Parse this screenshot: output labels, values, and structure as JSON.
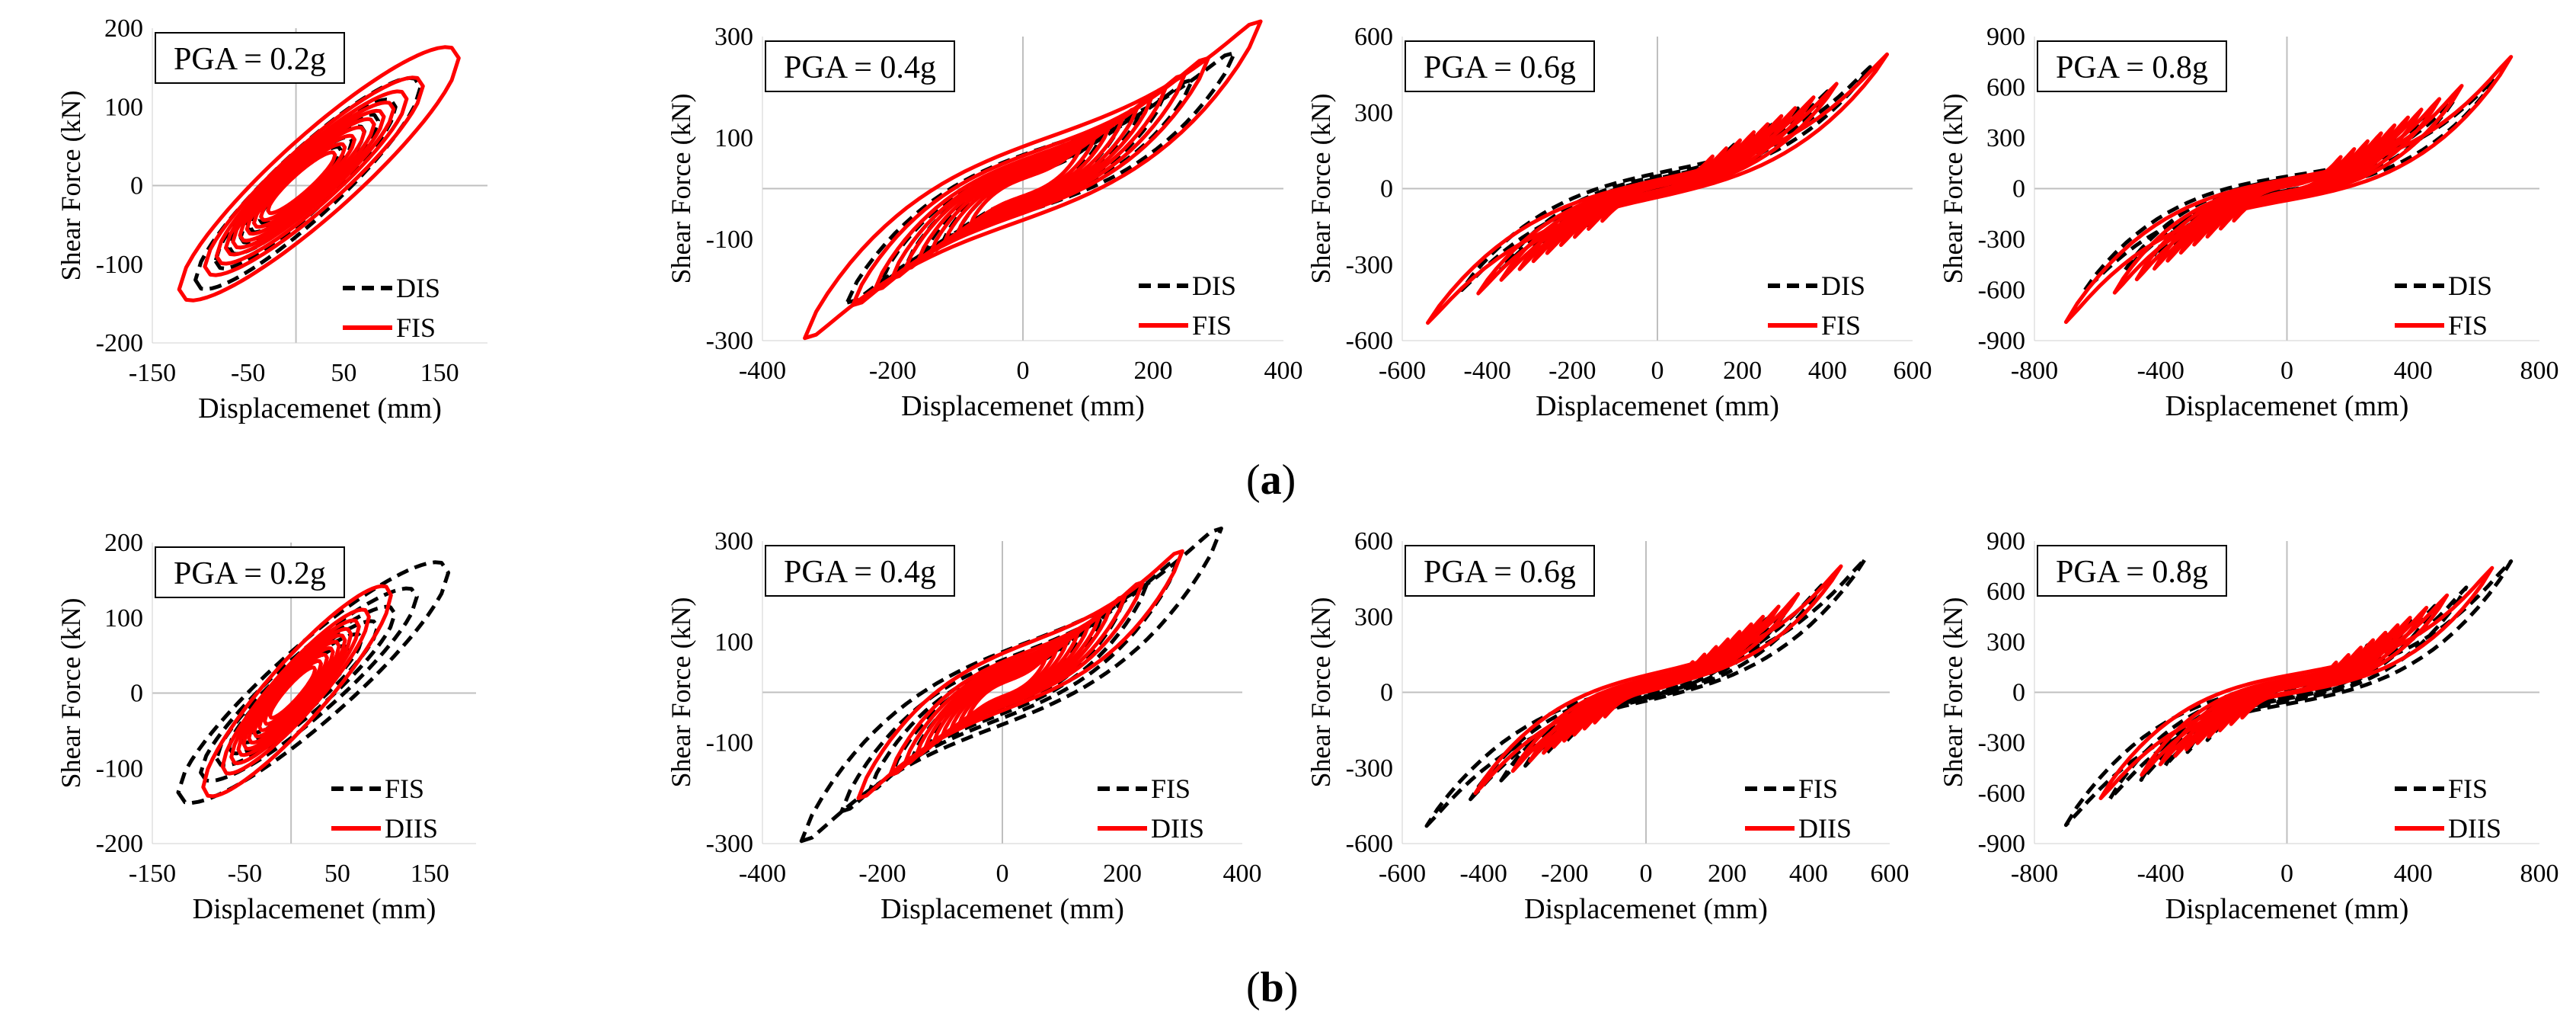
{
  "figure": {
    "row_a_label": "a",
    "row_b_label": "b"
  },
  "chart_data": [
    {
      "type": "line",
      "panel": "a1",
      "title": "PGA = 0.2g",
      "xlabel": "Displacemenet (mm)",
      "ylabel": "Shear Force (kN)",
      "xlim": [
        -150,
        200
      ],
      "ylim": [
        -200,
        200
      ],
      "xticks": [
        -150,
        -50,
        50,
        150
      ],
      "yticks": [
        -200,
        -100,
        0,
        100,
        200
      ],
      "legend": "bottom-right",
      "series": [
        {
          "name": "DIS",
          "style": "dashed",
          "color": "#000000",
          "max_disp": 130,
          "max_force": 125,
          "min_disp": -105,
          "min_force": -120
        },
        {
          "name": "FIS",
          "style": "solid",
          "color": "#ff0000",
          "max_disp": 170,
          "max_force": 162,
          "min_disp": -122,
          "min_force": -132
        }
      ]
    },
    {
      "type": "line",
      "panel": "a2",
      "title": "PGA = 0.4g",
      "xlabel": "Displacemenet (mm)",
      "ylabel": "Shear Force (kN)",
      "xlim": [
        -400,
        400
      ],
      "ylim": [
        -300,
        300
      ],
      "xticks": [
        -400,
        -200,
        0,
        200,
        400
      ],
      "yticks": [
        -300,
        -100,
        100,
        300
      ],
      "legend": "bottom-right",
      "series": [
        {
          "name": "DIS",
          "style": "dashed",
          "color": "#000000",
          "max_disp": 325,
          "max_force": 268,
          "min_disp": -270,
          "min_force": -225
        },
        {
          "name": "FIS",
          "style": "solid",
          "color": "#ff0000",
          "max_disp": 365,
          "max_force": 330,
          "min_disp": -335,
          "min_force": -295
        }
      ]
    },
    {
      "type": "line",
      "panel": "a3",
      "title": "PGA = 0.6g",
      "xlabel": "Displacemenet (mm)",
      "ylabel": "Shear Force (kN)",
      "xlim": [
        -600,
        600
      ],
      "ylim": [
        -600,
        600
      ],
      "xticks": [
        -600,
        -400,
        -200,
        0,
        200,
        400,
        600
      ],
      "yticks": [
        -600,
        -300,
        0,
        300,
        600
      ],
      "legend": "bottom-right",
      "series": [
        {
          "name": "DIS",
          "style": "dashed",
          "color": "#000000",
          "max_disp": 500,
          "max_force": 480,
          "min_disp": -460,
          "min_force": -400
        },
        {
          "name": "FIS",
          "style": "solid",
          "color": "#ff0000",
          "max_disp": 540,
          "max_force": 530,
          "min_disp": -540,
          "min_force": -530
        }
      ]
    },
    {
      "type": "line",
      "panel": "a4",
      "title": "PGA = 0.8g",
      "xlabel": "Displacemenet (mm)",
      "ylabel": "Shear Force (kN)",
      "xlim": [
        -800,
        800
      ],
      "ylim": [
        -900,
        900
      ],
      "xticks": [
        -800,
        -400,
        0,
        400,
        800
      ],
      "yticks": [
        -900,
        -600,
        -300,
        0,
        300,
        600,
        900
      ],
      "legend": "bottom-right",
      "series": [
        {
          "name": "DIS",
          "style": "dashed",
          "color": "#000000",
          "max_disp": 660,
          "max_force": 650,
          "min_disp": -640,
          "min_force": -600
        },
        {
          "name": "FIS",
          "style": "solid",
          "color": "#ff0000",
          "max_disp": 710,
          "max_force": 780,
          "min_disp": -700,
          "min_force": -790
        }
      ]
    },
    {
      "type": "line",
      "panel": "b1",
      "title": "PGA = 0.2g",
      "xlabel": "Displacemenet (mm)",
      "ylabel": "Shear Force (kN)",
      "xlim": [
        -150,
        200
      ],
      "ylim": [
        -200,
        200
      ],
      "xticks": [
        -150,
        -50,
        50,
        150
      ],
      "yticks": [
        -200,
        -100,
        0,
        100,
        200
      ],
      "legend": "bottom-right",
      "series": [
        {
          "name": "FIS",
          "style": "dashed",
          "color": "#000000",
          "max_disp": 170,
          "max_force": 160,
          "min_disp": -122,
          "min_force": -132
        },
        {
          "name": "DIIS",
          "style": "solid",
          "color": "#ff0000",
          "max_disp": 108,
          "max_force": 130,
          "min_disp": -95,
          "min_force": -125
        }
      ]
    },
    {
      "type": "line",
      "panel": "b2",
      "title": "PGA = 0.4g",
      "xlabel": "Displacemenet (mm)",
      "ylabel": "Shear Force (kN)",
      "xlim": [
        -400,
        400
      ],
      "ylim": [
        -300,
        300
      ],
      "xticks": [
        -400,
        -200,
        0,
        200,
        400
      ],
      "yticks": [
        -300,
        -100,
        100,
        300
      ],
      "legend": "bottom-right",
      "series": [
        {
          "name": "FIS",
          "style": "dashed",
          "color": "#000000",
          "max_disp": 365,
          "max_force": 325,
          "min_disp": -335,
          "min_force": -295
        },
        {
          "name": "DIIS",
          "style": "solid",
          "color": "#ff0000",
          "max_disp": 300,
          "max_force": 280,
          "min_disp": -240,
          "min_force": -210
        }
      ]
    },
    {
      "type": "line",
      "panel": "b3",
      "title": "PGA = 0.6g",
      "xlabel": "Displacemenet (mm)",
      "ylabel": "Shear Force (kN)",
      "xlim": [
        -600,
        600
      ],
      "ylim": [
        -600,
        600
      ],
      "xticks": [
        -600,
        -400,
        -200,
        0,
        200,
        400,
        600
      ],
      "yticks": [
        -600,
        -300,
        0,
        300,
        600
      ],
      "legend": "bottom-right",
      "series": [
        {
          "name": "FIS",
          "style": "dashed",
          "color": "#000000",
          "max_disp": 540,
          "max_force": 530,
          "min_disp": -540,
          "min_force": -530
        },
        {
          "name": "DIIS",
          "style": "solid",
          "color": "#ff0000",
          "max_disp": 480,
          "max_force": 500,
          "min_disp": -420,
          "min_force": -400
        }
      ]
    },
    {
      "type": "line",
      "panel": "b4",
      "title": "PGA = 0.8g",
      "xlabel": "Displacemenet (mm)",
      "ylabel": "Shear Force (kN)",
      "xlim": [
        -800,
        800
      ],
      "ylim": [
        -900,
        900
      ],
      "xticks": [
        -800,
        -400,
        0,
        400,
        800
      ],
      "yticks": [
        -900,
        -600,
        -300,
        0,
        300,
        600,
        900
      ],
      "legend": "bottom-right",
      "series": [
        {
          "name": "FIS",
          "style": "dashed",
          "color": "#000000",
          "max_disp": 710,
          "max_force": 780,
          "min_disp": -700,
          "min_force": -790
        },
        {
          "name": "DIIS",
          "style": "solid",
          "color": "#ff0000",
          "max_disp": 650,
          "max_force": 740,
          "min_disp": -590,
          "min_force": -630
        }
      ]
    }
  ]
}
